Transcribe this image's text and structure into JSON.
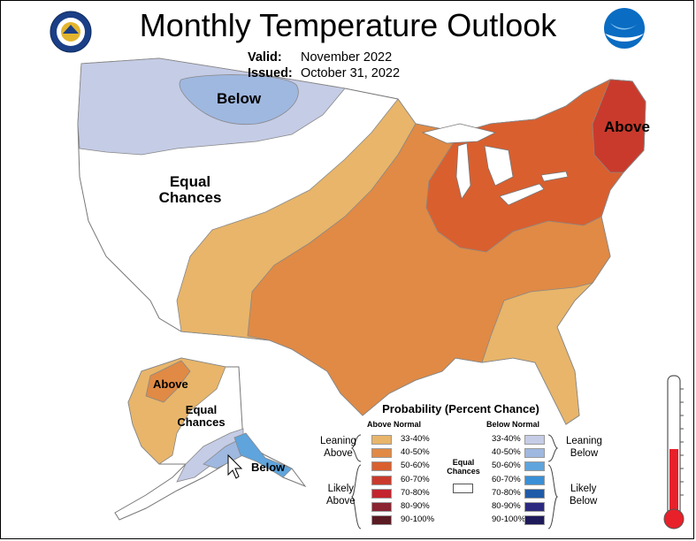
{
  "title": "Monthly Temperature Outlook",
  "valid": {
    "label": "Valid:",
    "value": "November 2022"
  },
  "issued": {
    "label": "Issued:",
    "value": "October 31, 2022"
  },
  "logos": {
    "left": "doc-seal",
    "right": "noaa-logo"
  },
  "map_labels": {
    "below": "Below",
    "above": "Above",
    "equal_chances": [
      "Equal",
      "Chances"
    ],
    "ak_above": "Above",
    "ak_equal": [
      "Equal",
      "Chances"
    ],
    "ak_below": "Below"
  },
  "legend": {
    "title": "Probability (Percent Chance)",
    "above_header": "Above Normal",
    "below_header": "Below Normal",
    "ranges": [
      "33-40%",
      "40-50%",
      "50-60%",
      "60-70%",
      "70-80%",
      "80-90%",
      "90-100%"
    ],
    "above_colors": [
      "#e8b56a",
      "#e08a45",
      "#d95f2f",
      "#c93a2c",
      "#c4242e",
      "#8b2331",
      "#5a1a22"
    ],
    "below_colors": [
      "#c5cce6",
      "#9fb8e0",
      "#5fa4dc",
      "#3a8fd6",
      "#1e5aa8",
      "#2c2a80",
      "#1f1a5a"
    ],
    "leaning_above": [
      "Leaning",
      "Above"
    ],
    "likely_above": [
      "Likely",
      "Above"
    ],
    "leaning_below": [
      "Leaning",
      "Below"
    ],
    "likely_below": [
      "Likely",
      "Below"
    ],
    "equal_chances": [
      "Equal",
      "Chances"
    ]
  },
  "colors": {
    "equal": "#ffffff",
    "above_33_40": "#e8b56a",
    "above_40_50": "#e08a45",
    "above_50_60": "#d95f2f",
    "above_60_70": "#c93a2c",
    "below_33_40": "#c5cce6",
    "below_40_50": "#9fb8e0",
    "below_50_60": "#5fa4dc",
    "thermometer_red": "#e8202a"
  }
}
